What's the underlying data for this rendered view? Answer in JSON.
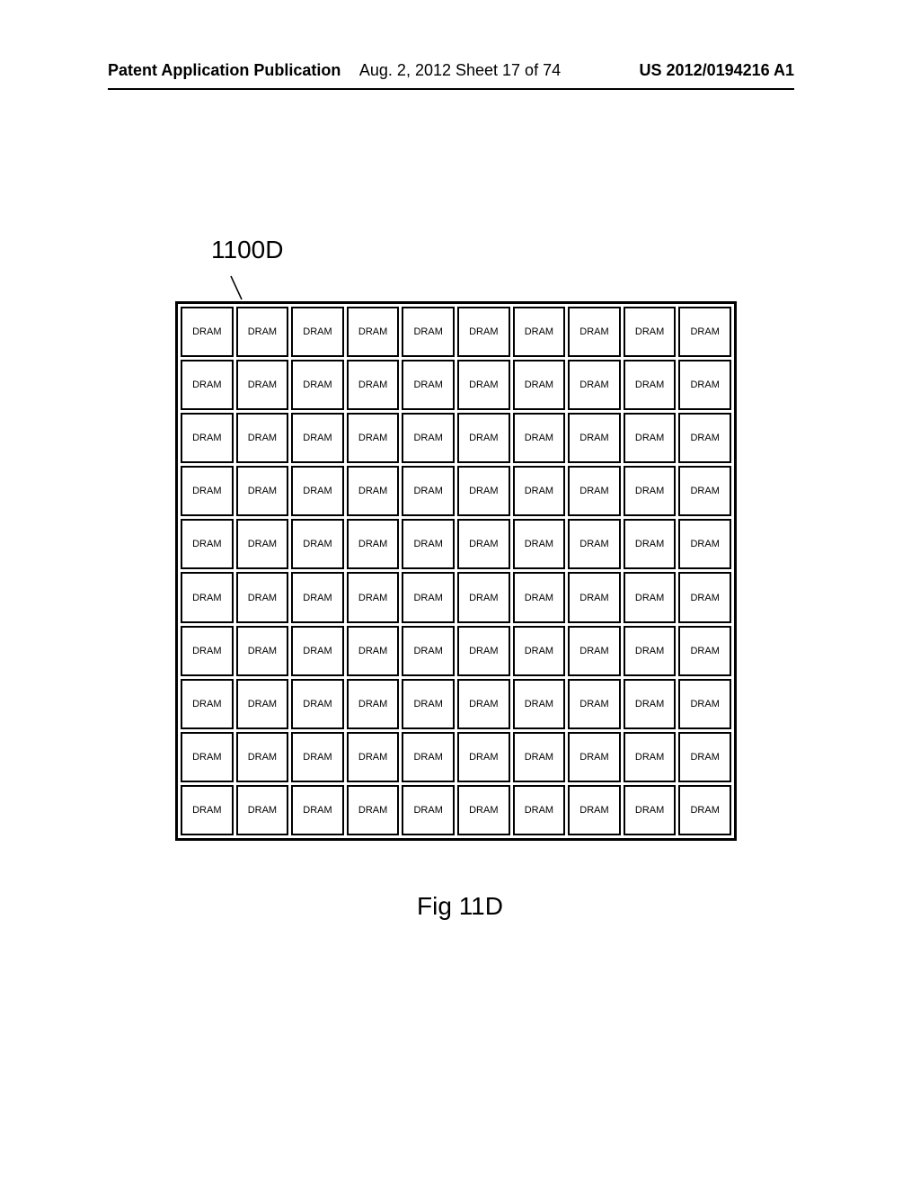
{
  "header": {
    "left": "Patent Application Publication",
    "center": "Aug. 2, 2012  Sheet 17 of 74",
    "right": "US 2012/0194216 A1"
  },
  "figure_label": "1100D",
  "grid": {
    "rows": 10,
    "cols": 10,
    "cell_label": "DRAM",
    "border_color": "#000000",
    "border_width": 2,
    "outer_border_width": 3,
    "background_color": "#ffffff",
    "cell_font_size": 11
  },
  "figure_caption": "Fig  11D",
  "colors": {
    "text": "#000000",
    "background": "#ffffff",
    "divider": "#000000"
  },
  "typography": {
    "header_fontsize": 18,
    "figure_label_fontsize": 28,
    "caption_fontsize": 28
  }
}
